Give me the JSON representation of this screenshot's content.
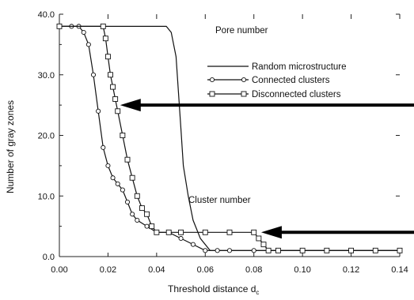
{
  "chart_data": {
    "type": "line",
    "xlabel": "Threshold distance d",
    "xlabel_sub": "c",
    "ylabel": "Number of gray zones",
    "xlim": [
      0.0,
      0.14
    ],
    "ylim": [
      0.0,
      40.0
    ],
    "x_ticks": [
      "0.00",
      "0.02",
      "0.04",
      "0.06",
      "0.08",
      "0.10",
      "0.12",
      "0.14"
    ],
    "y_ticks": [
      "0.0",
      "10.0",
      "20.0",
      "30.0",
      "40.0"
    ],
    "grid": false,
    "legend_position": "right",
    "annotations": [
      {
        "text": "Pore number"
      },
      {
        "text": "Cluster number"
      }
    ],
    "series": [
      {
        "name": "Random microstructure",
        "marker": "none",
        "x": [
          0.0,
          0.044,
          0.046,
          0.048,
          0.049,
          0.05,
          0.051,
          0.053,
          0.055,
          0.058,
          0.062,
          0.07,
          0.14
        ],
        "y": [
          38,
          38,
          37,
          33,
          27,
          21,
          15,
          10,
          6,
          3,
          1,
          1,
          1
        ]
      },
      {
        "name": "Connected clusters",
        "marker": "circle",
        "x": [
          0.0,
          0.005,
          0.008,
          0.01,
          0.012,
          0.014,
          0.016,
          0.018,
          0.02,
          0.022,
          0.024,
          0.026,
          0.028,
          0.03,
          0.032,
          0.036,
          0.04,
          0.045,
          0.05,
          0.055,
          0.06,
          0.065,
          0.07,
          0.08,
          0.09,
          0.1,
          0.11,
          0.12,
          0.13,
          0.14
        ],
        "y": [
          38,
          38,
          38,
          37,
          35,
          30,
          24,
          18,
          15,
          13,
          12,
          11,
          9,
          7,
          6,
          5,
          4,
          4,
          3,
          2,
          1,
          1,
          1,
          1,
          1,
          1,
          1,
          1,
          1,
          1
        ]
      },
      {
        "name": "Disconnected clusters",
        "marker": "square",
        "x": [
          0.0,
          0.018,
          0.019,
          0.02,
          0.021,
          0.022,
          0.023,
          0.024,
          0.026,
          0.028,
          0.03,
          0.032,
          0.034,
          0.036,
          0.038,
          0.04,
          0.045,
          0.05,
          0.06,
          0.07,
          0.08,
          0.082,
          0.084,
          0.086,
          0.09,
          0.1,
          0.11,
          0.12,
          0.13,
          0.14
        ],
        "y": [
          38,
          38,
          36,
          33,
          30,
          28,
          26,
          24,
          20,
          16,
          13,
          10,
          8,
          7,
          5,
          4,
          4,
          4,
          4,
          4,
          4,
          3,
          2,
          1,
          1,
          1,
          1,
          1,
          1,
          1
        ]
      }
    ],
    "arrows": [
      {
        "target_x": 0.025,
        "target_y": 25
      },
      {
        "target_x": 0.083,
        "target_y": 4
      }
    ]
  }
}
